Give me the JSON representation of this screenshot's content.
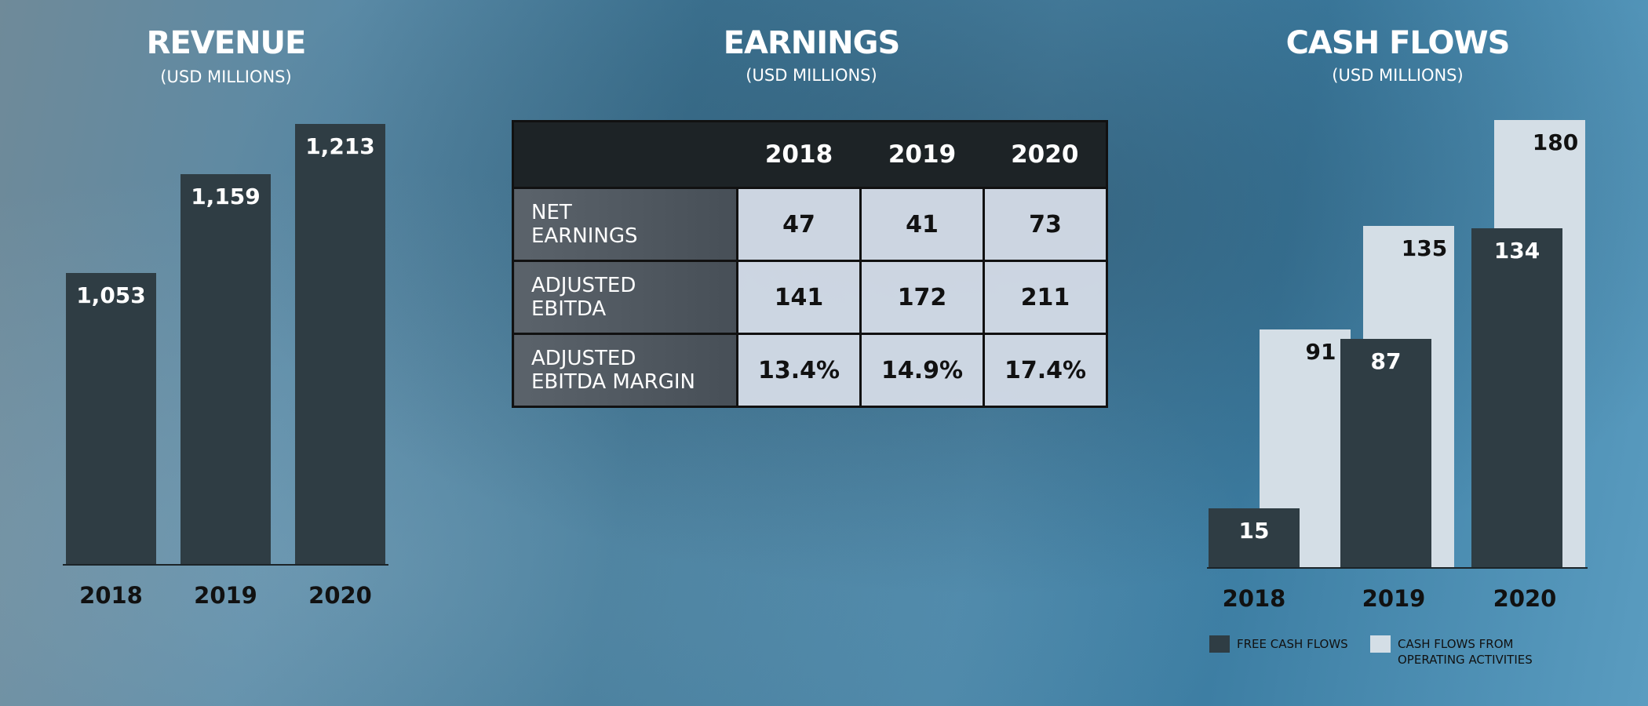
{
  "revenue": {
    "title": "REVENUE",
    "subtitle": "(USD MILLIONS)"
  },
  "earnings": {
    "title": "EARNINGS",
    "subtitle": "(USD MILLIONS)",
    "columns": [
      "2018",
      "2019",
      "2020"
    ],
    "rows": [
      {
        "label1": "NET",
        "label2": "EARNINGS",
        "values": [
          "47",
          "41",
          "73"
        ]
      },
      {
        "label1": "ADJUSTED",
        "label2": "EBITDA",
        "values": [
          "141",
          "172",
          "211"
        ]
      },
      {
        "label1": "ADJUSTED",
        "label2": "EBITDA MARGIN",
        "values": [
          "13.4%",
          "14.9%",
          "17.4%"
        ]
      }
    ]
  },
  "cashflows": {
    "title": "CASH FLOWS",
    "subtitle": "(USD MILLIONS)"
  },
  "chart_data": [
    {
      "type": "bar",
      "title": "REVENUE",
      "subtitle": "(USD MILLIONS)",
      "categories": [
        "2018",
        "2019",
        "2020"
      ],
      "values": [
        1053,
        1159,
        1213
      ],
      "labels": [
        "1,053",
        "1,159",
        "1,213"
      ],
      "ylim": [
        740,
        1300
      ],
      "color": "#2f3d44"
    },
    {
      "type": "table",
      "title": "EARNINGS",
      "columns": [
        "2018",
        "2019",
        "2020"
      ],
      "rows": [
        [
          "NET EARNINGS",
          47,
          41,
          73
        ],
        [
          "ADJUSTED EBITDA",
          141,
          172,
          211
        ],
        [
          "ADJUSTED EBITDA MARGIN",
          "13.4%",
          "14.9%",
          "17.4%"
        ]
      ]
    },
    {
      "type": "bar",
      "title": "CASH FLOWS",
      "subtitle": "(USD MILLIONS)",
      "categories": [
        "2018",
        "2019",
        "2020"
      ],
      "ylim": [
        -10,
        185
      ],
      "series": [
        {
          "name": "CASH FLOWS FROM OPERATING ACTIVITIES",
          "values": [
            91,
            135,
            180
          ],
          "color": "#d4dee6"
        },
        {
          "name": "FREE CASH FLOWS",
          "values": [
            15,
            87,
            134
          ],
          "color": "#2f3d44"
        }
      ],
      "legend": {
        "free": "FREE CASH FLOWS",
        "op1": "CASH FLOWS FROM",
        "op2": "OPERATING ACTIVITIES",
        "placement": "bottom"
      }
    }
  ]
}
